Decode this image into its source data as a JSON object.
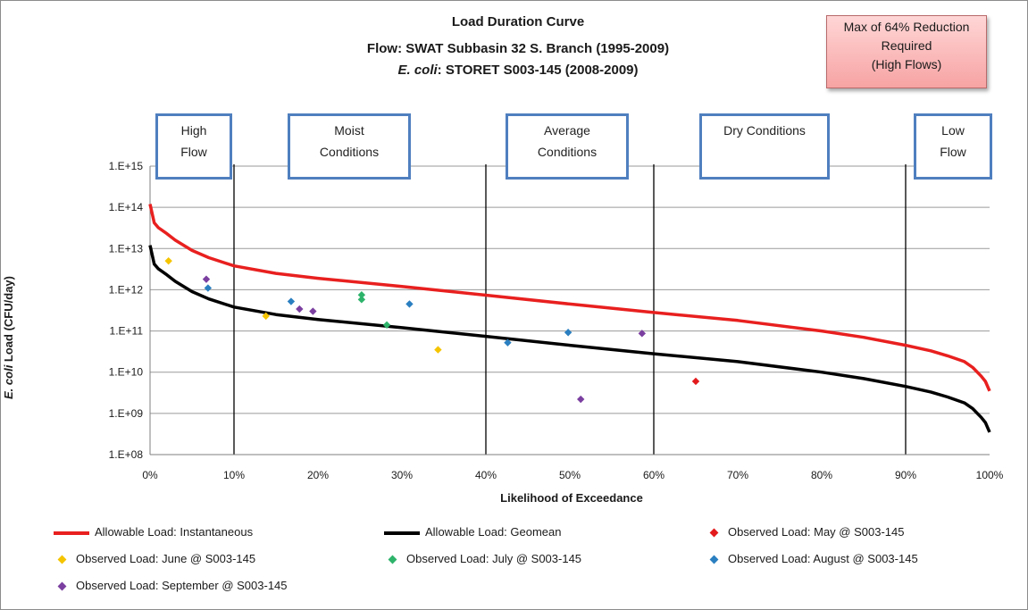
{
  "titles": {
    "line1": "Load Duration Curve",
    "line2": "Flow: SWAT Subbasin 32 S. Branch (1995-2009)",
    "line3_italic": "E. coli",
    "line3_rest": ": STORET S003-145 (2008-2009)"
  },
  "callout": {
    "line1": "Max of 64% Reduction",
    "line2": "Required",
    "line3": "(High Flows)"
  },
  "regions": {
    "high": {
      "line1": "High",
      "line2": "Flow"
    },
    "moist": {
      "line1": "Moist",
      "line2": "Conditions"
    },
    "average": {
      "line1": "Average",
      "line2": "Conditions"
    },
    "dry": {
      "line1": "Dry Conditions"
    },
    "low": {
      "line1": "Low",
      "line2": "Flow"
    }
  },
  "axis": {
    "ylabel_italic": "E. coli",
    "ylabel_rest": " Load (CFU/day)",
    "xlabel": "Likelihood of Exceedance"
  },
  "legend": {
    "instantaneous": "Allowable Load: Instantaneous",
    "geomean": "Allowable Load: Geomean",
    "may": "Observed Load: May @ S003-145",
    "june": "Observed Load: June @ S003-145",
    "july": "Observed Load: July @ S003-145",
    "august": "Observed Load: August @ S003-145",
    "september": "Observed Load: September @ S003-145"
  },
  "colors": {
    "instantaneous": "#e8201f",
    "geomean": "#000000",
    "may": "#e31a1c",
    "june": "#f5c400",
    "july": "#2eb36b",
    "august": "#2a7fc0",
    "september": "#7b3fa0",
    "region_border": "#4f7fbf"
  },
  "chart_data": {
    "type": "scatter",
    "title": "Load Duration Curve",
    "xlabel": "Likelihood of Exceedance",
    "ylabel": "E. coli Load (CFU/day)",
    "x_unit": "percent",
    "xlim": [
      0,
      100
    ],
    "ylim": [
      100000000.0,
      1000000000000000.0
    ],
    "yscale": "log",
    "x_ticks": [
      "0%",
      "10%",
      "20%",
      "30%",
      "40%",
      "50%",
      "60%",
      "70%",
      "80%",
      "90%",
      "100%"
    ],
    "y_ticks": [
      "1.E+08",
      "1.E+09",
      "1.E+10",
      "1.E+11",
      "1.E+12",
      "1.E+13",
      "1.E+14",
      "1.E+15"
    ],
    "grid": true,
    "legend_position": "bottom",
    "region_dividers": [
      10,
      40,
      60,
      90
    ],
    "series": [
      {
        "name": "Allowable Load: Instantaneous",
        "kind": "line",
        "x": [
          0,
          0.5,
          1,
          2,
          3,
          5,
          7,
          10,
          15,
          20,
          30,
          40,
          50,
          60,
          70,
          80,
          85,
          90,
          93,
          95,
          97,
          98,
          99,
          99.5,
          100
        ],
        "y": [
          120000000000000.0,
          42000000000000.0,
          32000000000000.0,
          23000000000000.0,
          16000000000000.0,
          9000000000000.0,
          6000000000000.0,
          3800000000000.0,
          2500000000000.0,
          1900000000000.0,
          1200000000000.0,
          740000000000.0,
          450000000000.0,
          280000000000.0,
          180000000000.0,
          100000000000.0,
          70000000000.0,
          45000000000.0,
          33000000000.0,
          25000000000.0,
          18000000000.0,
          13000000000.0,
          8000000000.0,
          6000000000.0,
          3500000000.0
        ]
      },
      {
        "name": "Allowable Load: Geomean",
        "kind": "line",
        "x": [
          0,
          0.5,
          1,
          2,
          3,
          5,
          7,
          10,
          15,
          20,
          30,
          40,
          50,
          60,
          70,
          80,
          85,
          90,
          93,
          95,
          97,
          98,
          99,
          99.5,
          100
        ],
        "y": [
          12000000000000.0,
          4200000000000.0,
          3200000000000.0,
          2300000000000.0,
          1600000000000.0,
          900000000000.0,
          600000000000.0,
          380000000000.0,
          250000000000.0,
          190000000000.0,
          120000000000.0,
          74000000000.0,
          45000000000.0,
          28000000000.0,
          18000000000.0,
          10000000000.0,
          7000000000.0,
          4500000000.0,
          3300000000.0,
          2500000000.0,
          1800000000.0,
          1300000000.0,
          800000000.0,
          600000000.0,
          350000000.0
        ]
      },
      {
        "name": "Observed Load: May @ S003-145",
        "kind": "points",
        "x": [
          65
        ],
        "y": [
          6000000000.0
        ]
      },
      {
        "name": "Observed Load: June @ S003-145",
        "kind": "points",
        "x": [
          2.2,
          13.8,
          34.3
        ],
        "y": [
          5000000000000.0,
          230000000000.0,
          35000000000.0
        ]
      },
      {
        "name": "Observed Load: July @ S003-145",
        "kind": "points",
        "x": [
          25.2,
          25.2,
          28.2
        ],
        "y": [
          750000000000.0,
          580000000000.0,
          140000000000.0
        ]
      },
      {
        "name": "Observed Load: August @ S003-145",
        "kind": "points",
        "x": [
          6.9,
          16.8,
          30.9,
          42.6,
          49.8
        ],
        "y": [
          1100000000000.0,
          520000000000.0,
          450000000000.0,
          52000000000.0,
          92000000000.0
        ]
      },
      {
        "name": "Observed Load: September @ S003-145",
        "kind": "points",
        "x": [
          6.7,
          17.8,
          19.4,
          51.3,
          58.6
        ],
        "y": [
          1800000000000.0,
          340000000000.0,
          300000000000.0,
          2200000000.0,
          87000000000.0
        ]
      }
    ]
  }
}
